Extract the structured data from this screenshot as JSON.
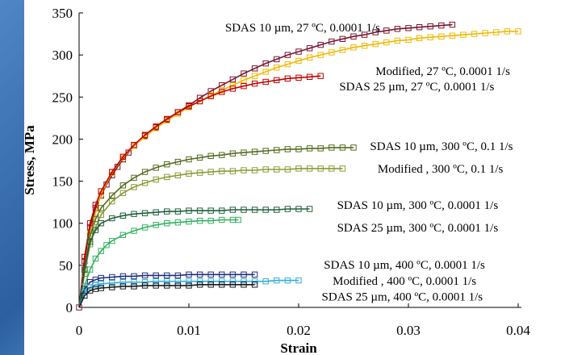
{
  "chart_data": {
    "type": "scatter",
    "title": "",
    "xlabel": "Strain",
    "ylabel": "Stress, MPa",
    "xlim": [
      0,
      0.04
    ],
    "ylim": [
      0,
      350
    ],
    "xticks": [
      0,
      0.01,
      0.02,
      0.03,
      0.04
    ],
    "xtick_labels": [
      "0",
      "0.01",
      "0.02",
      "0.03",
      "0.04"
    ],
    "yticks": [
      0,
      50,
      100,
      150,
      200,
      250,
      300,
      350
    ],
    "ytick_labels": [
      "0",
      "50",
      "100",
      "150",
      "200",
      "250",
      "300",
      "350"
    ],
    "grid": false,
    "legend": "none",
    "series": [
      {
        "name": "SDAS 10 µm, 27 ºC, 0.0001 1/s",
        "color": "#7a1530",
        "marker": "square",
        "points": [
          [
            0,
            0
          ],
          [
            0.0005,
            55
          ],
          [
            0.001,
            95
          ],
          [
            0.0015,
            118
          ],
          [
            0.002,
            133
          ],
          [
            0.0025,
            146
          ],
          [
            0.003,
            157
          ],
          [
            0.0035,
            167
          ],
          [
            0.004,
            176
          ],
          [
            0.0045,
            184
          ],
          [
            0.005,
            192
          ],
          [
            0.006,
            204
          ],
          [
            0.007,
            214
          ],
          [
            0.008,
            223
          ],
          [
            0.009,
            232
          ],
          [
            0.01,
            240
          ],
          [
            0.011,
            249
          ],
          [
            0.012,
            257
          ],
          [
            0.013,
            264
          ],
          [
            0.014,
            271
          ],
          [
            0.015,
            278
          ],
          [
            0.016,
            284
          ],
          [
            0.017,
            290
          ],
          [
            0.018,
            295
          ],
          [
            0.019,
            300
          ],
          [
            0.02,
            304
          ],
          [
            0.021,
            308
          ],
          [
            0.022,
            312
          ],
          [
            0.023,
            316
          ],
          [
            0.024,
            319
          ],
          [
            0.025,
            322
          ],
          [
            0.026,
            324
          ],
          [
            0.027,
            327
          ],
          [
            0.028,
            329
          ],
          [
            0.029,
            331
          ],
          [
            0.03,
            332
          ],
          [
            0.031,
            333
          ],
          [
            0.032,
            334
          ],
          [
            0.033,
            335
          ],
          [
            0.034,
            336
          ]
        ]
      },
      {
        "name": "Modified, 27 ºC, 0.0001 1/s",
        "color": "#f0b800",
        "marker": "square",
        "points": [
          [
            0,
            0
          ],
          [
            0.001,
            88
          ],
          [
            0.002,
            135
          ],
          [
            0.003,
            160
          ],
          [
            0.004,
            178
          ],
          [
            0.005,
            192
          ],
          [
            0.006,
            203
          ],
          [
            0.007,
            213
          ],
          [
            0.008,
            222
          ],
          [
            0.009,
            230
          ],
          [
            0.01,
            238
          ],
          [
            0.011,
            245
          ],
          [
            0.012,
            252
          ],
          [
            0.013,
            258
          ],
          [
            0.014,
            264
          ],
          [
            0.015,
            270
          ],
          [
            0.016,
            275
          ],
          [
            0.017,
            280
          ],
          [
            0.018,
            285
          ],
          [
            0.019,
            289
          ],
          [
            0.02,
            293
          ],
          [
            0.021,
            297
          ],
          [
            0.022,
            300
          ],
          [
            0.023,
            303
          ],
          [
            0.024,
            306
          ],
          [
            0.025,
            309
          ],
          [
            0.026,
            311
          ],
          [
            0.027,
            313
          ],
          [
            0.028,
            315
          ],
          [
            0.029,
            317
          ],
          [
            0.03,
            318
          ],
          [
            0.031,
            320
          ],
          [
            0.032,
            321
          ],
          [
            0.033,
            322
          ],
          [
            0.034,
            323
          ],
          [
            0.035,
            324
          ],
          [
            0.036,
            325
          ],
          [
            0.037,
            326
          ],
          [
            0.038,
            327
          ],
          [
            0.039,
            328
          ],
          [
            0.04,
            328
          ]
        ]
      },
      {
        "name": "SDAS 25 µm, 27 ºC, 0.0001 1/s",
        "color": "#c00000",
        "marker": "square",
        "points": [
          [
            0,
            0
          ],
          [
            0.0005,
            60
          ],
          [
            0.001,
            100
          ],
          [
            0.0015,
            122
          ],
          [
            0.002,
            138
          ],
          [
            0.003,
            161
          ],
          [
            0.004,
            179
          ],
          [
            0.005,
            193
          ],
          [
            0.006,
            205
          ],
          [
            0.007,
            215
          ],
          [
            0.008,
            224
          ],
          [
            0.009,
            232
          ],
          [
            0.01,
            239
          ],
          [
            0.011,
            245
          ],
          [
            0.012,
            251
          ],
          [
            0.013,
            256
          ],
          [
            0.014,
            260
          ],
          [
            0.015,
            263
          ],
          [
            0.016,
            266
          ],
          [
            0.017,
            268
          ],
          [
            0.018,
            270
          ],
          [
            0.019,
            272
          ],
          [
            0.02,
            273
          ],
          [
            0.021,
            274
          ],
          [
            0.022,
            275
          ]
        ]
      },
      {
        "name": "SDAS 10 µm, 300 ºC, 0.1 1/s",
        "color": "#556b1f",
        "marker": "square",
        "points": [
          [
            0,
            0
          ],
          [
            0.0005,
            45
          ],
          [
            0.001,
            85
          ],
          [
            0.0015,
            105
          ],
          [
            0.002,
            118
          ],
          [
            0.003,
            133
          ],
          [
            0.004,
            145
          ],
          [
            0.005,
            154
          ],
          [
            0.006,
            161
          ],
          [
            0.007,
            166
          ],
          [
            0.008,
            170
          ],
          [
            0.009,
            173
          ],
          [
            0.01,
            176
          ],
          [
            0.011,
            178
          ],
          [
            0.012,
            180
          ],
          [
            0.013,
            181
          ],
          [
            0.014,
            183
          ],
          [
            0.015,
            184
          ],
          [
            0.016,
            185
          ],
          [
            0.017,
            186
          ],
          [
            0.018,
            187
          ],
          [
            0.019,
            188
          ],
          [
            0.02,
            188
          ],
          [
            0.021,
            189
          ],
          [
            0.022,
            189
          ],
          [
            0.023,
            190
          ],
          [
            0.024,
            190
          ],
          [
            0.025,
            190
          ]
        ]
      },
      {
        "name": "Modified , 300 ºC, 0.1 1/s",
        "color": "#8b9a35",
        "marker": "square",
        "points": [
          [
            0,
            0
          ],
          [
            0.0005,
            40
          ],
          [
            0.001,
            75
          ],
          [
            0.0015,
            95
          ],
          [
            0.002,
            110
          ],
          [
            0.003,
            126
          ],
          [
            0.004,
            136
          ],
          [
            0.005,
            143
          ],
          [
            0.006,
            148
          ],
          [
            0.007,
            152
          ],
          [
            0.008,
            155
          ],
          [
            0.009,
            157
          ],
          [
            0.01,
            159
          ],
          [
            0.011,
            160
          ],
          [
            0.012,
            161
          ],
          [
            0.013,
            162
          ],
          [
            0.014,
            162
          ],
          [
            0.015,
            163
          ],
          [
            0.016,
            163
          ],
          [
            0.017,
            164
          ],
          [
            0.018,
            164
          ],
          [
            0.019,
            164
          ],
          [
            0.02,
            165
          ],
          [
            0.021,
            165
          ],
          [
            0.022,
            165
          ],
          [
            0.023,
            165
          ],
          [
            0.024,
            165
          ]
        ]
      },
      {
        "name": "SDAS 10 µm, 300 ºC, 0.0001 1/s",
        "color": "#1e5f3a",
        "marker": "square",
        "points": [
          [
            0,
            0
          ],
          [
            0.0005,
            45
          ],
          [
            0.001,
            78
          ],
          [
            0.0015,
            92
          ],
          [
            0.002,
            100
          ],
          [
            0.003,
            106
          ],
          [
            0.004,
            109
          ],
          [
            0.005,
            111
          ],
          [
            0.006,
            112
          ],
          [
            0.007,
            113
          ],
          [
            0.008,
            114
          ],
          [
            0.009,
            114
          ],
          [
            0.01,
            115
          ],
          [
            0.011,
            115
          ],
          [
            0.012,
            115
          ],
          [
            0.013,
            115
          ],
          [
            0.014,
            116
          ],
          [
            0.015,
            116
          ],
          [
            0.016,
            116
          ],
          [
            0.017,
            116
          ],
          [
            0.018,
            116
          ],
          [
            0.019,
            117
          ],
          [
            0.02,
            117
          ],
          [
            0.021,
            117
          ]
        ]
      },
      {
        "name": "SDAS 25 µm, 300 ºC, 0.0001 1/s",
        "color": "#33b060",
        "marker": "square",
        "points": [
          [
            0,
            0
          ],
          [
            0.0005,
            25
          ],
          [
            0.001,
            45
          ],
          [
            0.0015,
            58
          ],
          [
            0.002,
            67
          ],
          [
            0.0025,
            74
          ],
          [
            0.003,
            79
          ],
          [
            0.004,
            86
          ],
          [
            0.005,
            91
          ],
          [
            0.006,
            95
          ],
          [
            0.007,
            98
          ],
          [
            0.008,
            100
          ],
          [
            0.009,
            101
          ],
          [
            0.01,
            102
          ],
          [
            0.011,
            103
          ],
          [
            0.012,
            103
          ],
          [
            0.013,
            104
          ],
          [
            0.014,
            104
          ],
          [
            0.0145,
            104
          ]
        ]
      },
      {
        "name": "SDAS 10 µm, 400 ºC, 0.0001 1/s",
        "color": "#1f2f7a",
        "marker": "square",
        "points": [
          [
            0,
            0
          ],
          [
            0.0005,
            22
          ],
          [
            0.001,
            30
          ],
          [
            0.0015,
            33
          ],
          [
            0.002,
            35
          ],
          [
            0.003,
            36
          ],
          [
            0.004,
            37
          ],
          [
            0.005,
            37
          ],
          [
            0.006,
            38
          ],
          [
            0.007,
            38
          ],
          [
            0.008,
            38
          ],
          [
            0.009,
            38
          ],
          [
            0.01,
            39
          ],
          [
            0.011,
            39
          ],
          [
            0.012,
            39
          ],
          [
            0.013,
            39
          ],
          [
            0.014,
            39
          ],
          [
            0.015,
            39
          ],
          [
            0.016,
            39
          ]
        ]
      },
      {
        "name": "Modified , 400 ºC, 0.0001 1/s",
        "color": "#33aee0",
        "marker": "square",
        "points": [
          [
            0,
            0
          ],
          [
            0.0005,
            18
          ],
          [
            0.001,
            24
          ],
          [
            0.0015,
            27
          ],
          [
            0.002,
            28
          ],
          [
            0.003,
            29
          ],
          [
            0.004,
            30
          ],
          [
            0.005,
            30
          ],
          [
            0.006,
            30
          ],
          [
            0.007,
            31
          ],
          [
            0.008,
            31
          ],
          [
            0.009,
            31
          ],
          [
            0.01,
            31
          ],
          [
            0.011,
            31
          ],
          [
            0.012,
            31
          ],
          [
            0.013,
            31
          ],
          [
            0.014,
            31
          ],
          [
            0.015,
            31
          ],
          [
            0.016,
            31
          ],
          [
            0.017,
            31
          ],
          [
            0.018,
            32
          ],
          [
            0.019,
            32
          ],
          [
            0.02,
            32
          ]
        ]
      },
      {
        "name": "SDAS 25 µm, 400 ºC, 0.0001 1/s",
        "color": "#1a1a1a",
        "marker": "square",
        "points": [
          [
            0,
            0
          ],
          [
            0.0005,
            14
          ],
          [
            0.001,
            20
          ],
          [
            0.0015,
            22
          ],
          [
            0.002,
            23
          ],
          [
            0.003,
            24
          ],
          [
            0.004,
            25
          ],
          [
            0.005,
            25
          ],
          [
            0.006,
            26
          ],
          [
            0.007,
            26
          ],
          [
            0.008,
            26
          ],
          [
            0.009,
            26
          ],
          [
            0.01,
            26
          ],
          [
            0.011,
            27
          ],
          [
            0.012,
            27
          ],
          [
            0.013,
            27
          ],
          [
            0.014,
            27
          ],
          [
            0.015,
            27
          ],
          [
            0.016,
            27
          ]
        ]
      }
    ],
    "annotations": [
      {
        "text": "SDAS 10 µm, 27 ºC, 0.0001 1/s",
        "x": 0.0133,
        "y": 328
      },
      {
        "text": "Modified, 27 ºC, 0.0001 1/s",
        "x": 0.027,
        "y": 276
      },
      {
        "text": "SDAS 25 µm, 27 ºC, 0.0001 1/s",
        "x": 0.0237,
        "y": 258
      },
      {
        "text": "SDAS 10 µm, 300 ºC, 0.1 1/s",
        "x": 0.0265,
        "y": 187
      },
      {
        "text": "Modified , 300 ºC, 0.1 1/s",
        "x": 0.0272,
        "y": 160
      },
      {
        "text": "SDAS 10 µm, 300 ºC, 0.0001 1/s",
        "x": 0.0235,
        "y": 117
      },
      {
        "text": "SDAS 25 µm, 300 ºC, 0.0001 1/s",
        "x": 0.0235,
        "y": 90
      },
      {
        "text": "SDAS 10 µm, 400 ºC, 0.0001 1/s",
        "x": 0.0223,
        "y": 46
      },
      {
        "text": "Modified , 400 ºC, 0.0001 1/s",
        "x": 0.0231,
        "y": 27
      },
      {
        "text": "SDAS 25 µm, 400 ºC, 0.0001 1/s",
        "x": 0.0221,
        "y": 8
      }
    ]
  }
}
